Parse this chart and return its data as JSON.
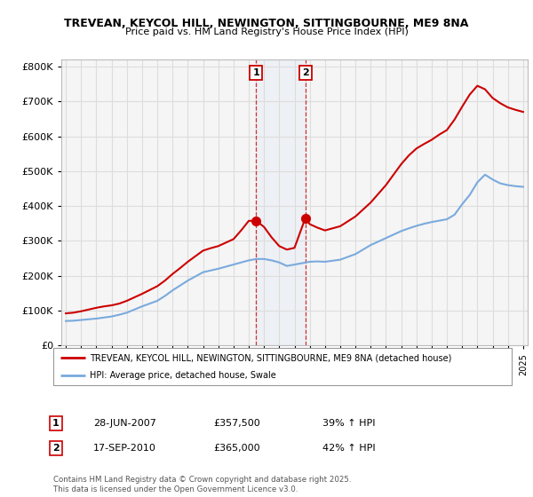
{
  "title_line1": "TREVEAN, KEYCOL HILL, NEWINGTON, SITTINGBOURNE, ME9 8NA",
  "title_line2": "Price paid vs. HM Land Registry's House Price Index (HPI)",
  "ylim": [
    0,
    820000
  ],
  "yticks": [
    0,
    100000,
    200000,
    300000,
    400000,
    500000,
    600000,
    700000,
    800000
  ],
  "ytick_labels": [
    "£0",
    "£100K",
    "£200K",
    "£300K",
    "£400K",
    "£500K",
    "£600K",
    "£700K",
    "£800K"
  ],
  "background_color": "#ffffff",
  "plot_bg_color": "#f5f5f5",
  "grid_color": "#dddddd",
  "red_line_color": "#cc0000",
  "blue_line_color": "#7aaadd",
  "annotation1": {
    "label": "1",
    "date_x": 2007.49,
    "price": 357500,
    "date_str": "28-JUN-2007",
    "price_str": "£357,500",
    "hpi_str": "39% ↑ HPI"
  },
  "annotation2": {
    "label": "2",
    "date_x": 2010.71,
    "price": 365000,
    "date_str": "17-SEP-2010",
    "price_str": "£365,000",
    "hpi_str": "42% ↑ HPI"
  },
  "legend_entry1": "TREVEAN, KEYCOL HILL, NEWINGTON, SITTINGBOURNE, ME9 8NA (detached house)",
  "legend_entry2": "HPI: Average price, detached house, Swale",
  "footer": "Contains HM Land Registry data © Crown copyright and database right 2025.\nThis data is licensed under the Open Government Licence v3.0.",
  "hpi_years": [
    1995,
    1995.5,
    1996,
    1996.5,
    1997,
    1997.5,
    1998,
    1998.5,
    1999,
    1999.5,
    2000,
    2000.5,
    2001,
    2001.5,
    2002,
    2002.5,
    2003,
    2003.5,
    2004,
    2004.5,
    2005,
    2005.5,
    2006,
    2006.5,
    2007,
    2007.5,
    2008,
    2008.5,
    2009,
    2009.5,
    2010,
    2010.5,
    2011,
    2011.5,
    2012,
    2012.5,
    2013,
    2013.5,
    2014,
    2014.5,
    2015,
    2015.5,
    2016,
    2016.5,
    2017,
    2017.5,
    2018,
    2018.5,
    2019,
    2019.5,
    2020,
    2020.5,
    2021,
    2021.5,
    2022,
    2022.5,
    2023,
    2023.5,
    2024,
    2024.5,
    2025
  ],
  "hpi_values": [
    70000,
    71000,
    73000,
    75000,
    77000,
    80000,
    83000,
    88000,
    94000,
    103000,
    112000,
    120000,
    128000,
    142000,
    158000,
    172000,
    186000,
    198000,
    210000,
    215000,
    220000,
    226000,
    232000,
    238000,
    244000,
    248000,
    248000,
    244000,
    238000,
    228000,
    232000,
    236000,
    240000,
    241000,
    240000,
    243000,
    246000,
    254000,
    262000,
    275000,
    288000,
    298000,
    308000,
    318000,
    328000,
    336000,
    343000,
    349000,
    354000,
    358000,
    362000,
    375000,
    405000,
    432000,
    468000,
    490000,
    476000,
    465000,
    460000,
    457000,
    455000
  ],
  "price_years": [
    1995,
    1995.5,
    1996,
    1996.5,
    1997,
    1997.5,
    1998,
    1998.5,
    1999,
    1999.5,
    2000,
    2000.5,
    2001,
    2001.5,
    2002,
    2002.5,
    2003,
    2003.5,
    2004,
    2004.5,
    2005,
    2005.5,
    2006,
    2006.5,
    2007,
    2007.49,
    2008,
    2008.5,
    2009,
    2009.5,
    2010,
    2010.71,
    2011,
    2011.5,
    2012,
    2012.5,
    2013,
    2013.5,
    2014,
    2014.5,
    2015,
    2015.5,
    2016,
    2016.5,
    2017,
    2017.5,
    2018,
    2018.5,
    2019,
    2019.5,
    2020,
    2020.5,
    2021,
    2021.5,
    2022,
    2022.5,
    2023,
    2023.5,
    2024,
    2024.5,
    2025
  ],
  "price_values": [
    92000,
    94000,
    98000,
    103000,
    108000,
    112000,
    115000,
    120000,
    128000,
    138000,
    148000,
    159000,
    170000,
    186000,
    205000,
    222000,
    240000,
    256000,
    272000,
    279000,
    285000,
    295000,
    305000,
    330000,
    357500,
    357500,
    340000,
    310000,
    285000,
    275000,
    280000,
    365000,
    348000,
    338000,
    330000,
    336000,
    342000,
    356000,
    370000,
    390000,
    410000,
    435000,
    460000,
    490000,
    520000,
    545000,
    565000,
    578000,
    590000,
    605000,
    618000,
    648000,
    685000,
    720000,
    745000,
    735000,
    710000,
    695000,
    683000,
    676000,
    670000
  ],
  "xmin": 1995,
  "xmax": 2025
}
